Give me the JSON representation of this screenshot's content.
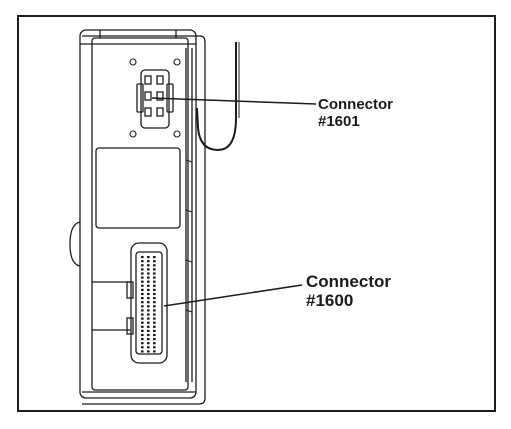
{
  "callouts": {
    "connector_1601": {
      "line1": "Connector",
      "line2": "#1601"
    },
    "connector_1600": {
      "line1": "Connector",
      "line2": "#1600"
    }
  },
  "colors": {
    "ink": "#1c1c1c",
    "paper": "#ffffff"
  }
}
